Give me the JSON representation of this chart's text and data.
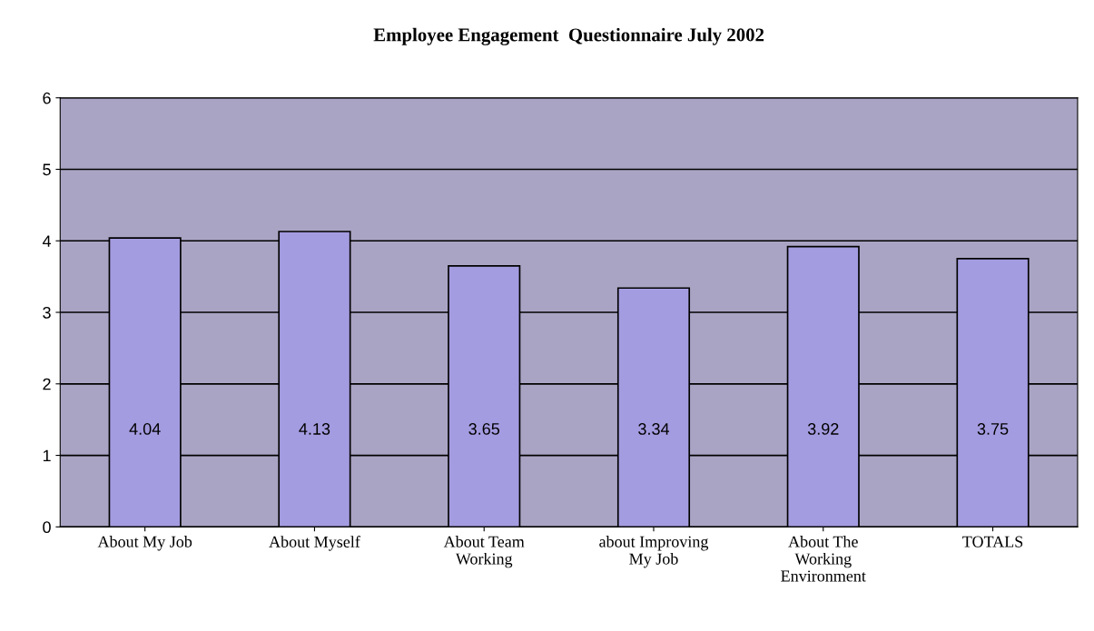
{
  "chart_data": {
    "type": "bar",
    "title": "Employee Engagement  Questionnaire July 2002",
    "categories": [
      "About My Job",
      "About Myself",
      "About Team\nWorking",
      "about Improving\nMy Job",
      "About The\nWorking\nEnvironment",
      "TOTALS"
    ],
    "values": [
      4.04,
      4.13,
      3.65,
      3.34,
      3.92,
      3.75
    ],
    "color": "#a49ce0",
    "ylim": [
      0,
      6
    ],
    "yticks": [
      0,
      1,
      2,
      3,
      4,
      5,
      6
    ],
    "grid": "y",
    "data_labels": true,
    "legend": false
  }
}
